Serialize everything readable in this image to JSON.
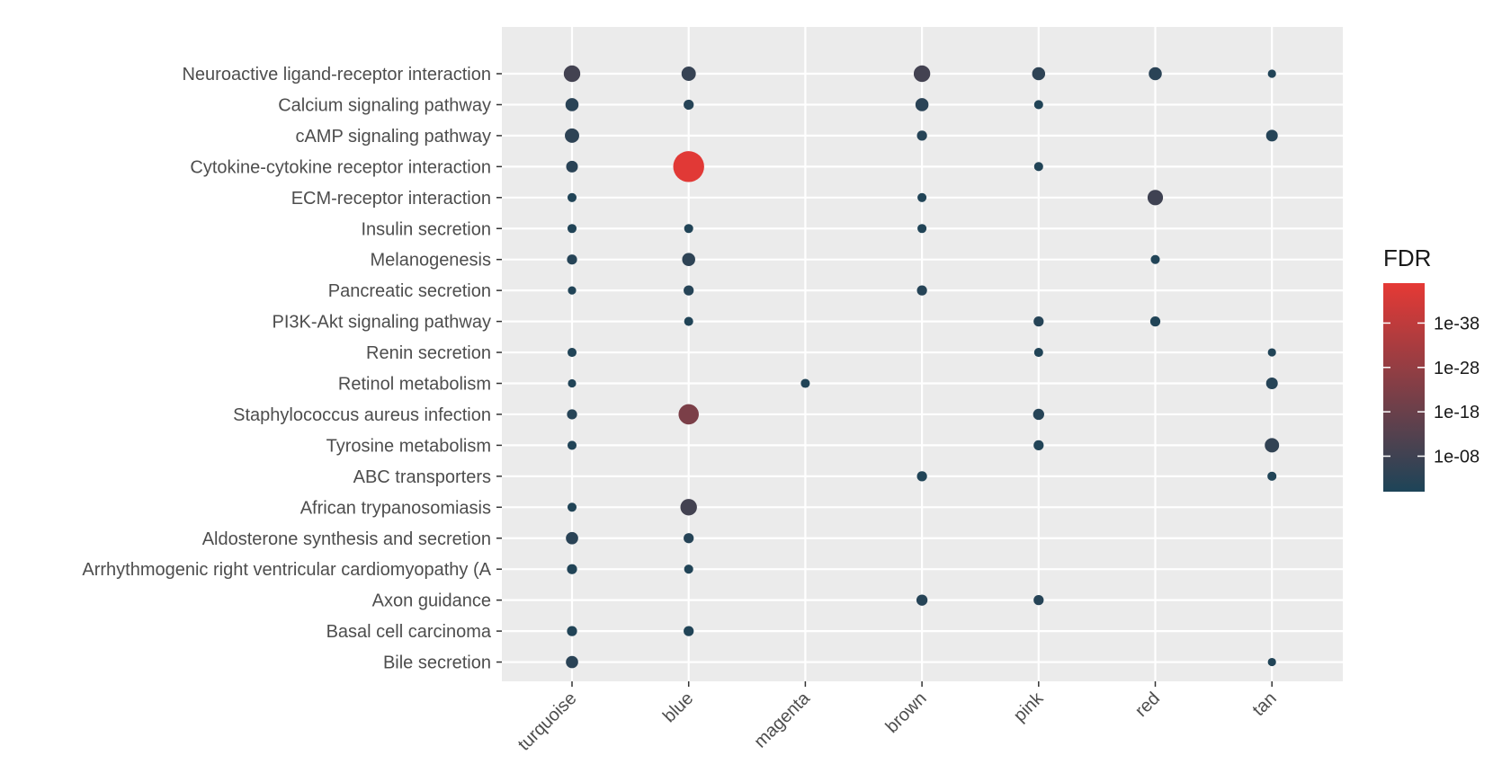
{
  "chart_data": {
    "type": "scatter",
    "title": "",
    "xlabel": "",
    "ylabel": "",
    "x_categories": [
      "turquoise",
      "blue",
      "magenta",
      "brown",
      "pink",
      "red",
      "tan"
    ],
    "y_categories": [
      "Neuroactive ligand-receptor interaction",
      "Calcium signaling pathway",
      "cAMP signaling pathway",
      "Cytokine-cytokine receptor interaction",
      "ECM-receptor interaction",
      "Insulin secretion",
      "Melanogenesis",
      "Pancreatic secretion",
      "PI3K-Akt signaling pathway",
      "Renin secretion",
      "Retinol metabolism",
      "Staphylococcus aureus infection",
      "Tyrosine metabolism",
      "ABC transporters",
      "African trypanosomiasis",
      "Aldosterone synthesis and secretion",
      "Arrhythmogenic right ventricular cardiomyopathy (A",
      "Axon guidance",
      "Basal cell carcinoma",
      "Bile secretion"
    ],
    "points": [
      {
        "x": "turquoise",
        "y": "Neuroactive ligand-receptor interaction",
        "fdr_log10": -9,
        "size": 4
      },
      {
        "x": "blue",
        "y": "Neuroactive ligand-receptor interaction",
        "fdr_log10": -6,
        "size": 3
      },
      {
        "x": "brown",
        "y": "Neuroactive ligand-receptor interaction",
        "fdr_log10": -9,
        "size": 4
      },
      {
        "x": "pink",
        "y": "Neuroactive ligand-receptor interaction",
        "fdr_log10": -4,
        "size": 2.5
      },
      {
        "x": "red",
        "y": "Neuroactive ligand-receptor interaction",
        "fdr_log10": -3,
        "size": 2.5
      },
      {
        "x": "tan",
        "y": "Neuroactive ligand-receptor interaction",
        "fdr_log10": -1,
        "size": 1
      },
      {
        "x": "turquoise",
        "y": "Calcium signaling pathway",
        "fdr_log10": -3,
        "size": 2.5
      },
      {
        "x": "blue",
        "y": "Calcium signaling pathway",
        "fdr_log10": -2,
        "size": 1.5
      },
      {
        "x": "brown",
        "y": "Calcium signaling pathway",
        "fdr_log10": -3,
        "size": 2.5
      },
      {
        "x": "pink",
        "y": "Calcium signaling pathway",
        "fdr_log10": -1,
        "size": 1.2
      },
      {
        "x": "turquoise",
        "y": "cAMP signaling pathway",
        "fdr_log10": -4,
        "size": 3
      },
      {
        "x": "brown",
        "y": "cAMP signaling pathway",
        "fdr_log10": -2,
        "size": 1.5
      },
      {
        "x": "tan",
        "y": "cAMP signaling pathway",
        "fdr_log10": -2,
        "size": 2
      },
      {
        "x": "turquoise",
        "y": "Cytokine-cytokine receptor interaction",
        "fdr_log10": -3,
        "size": 2
      },
      {
        "x": "blue",
        "y": "Cytokine-cytokine receptor interaction",
        "fdr_log10": -46,
        "size": 14
      },
      {
        "x": "pink",
        "y": "Cytokine-cytokine receptor interaction",
        "fdr_log10": -1,
        "size": 1.2
      },
      {
        "x": "turquoise",
        "y": "ECM-receptor interaction",
        "fdr_log10": -1,
        "size": 1.2
      },
      {
        "x": "brown",
        "y": "ECM-receptor interaction",
        "fdr_log10": -1,
        "size": 1.2
      },
      {
        "x": "red",
        "y": "ECM-receptor interaction",
        "fdr_log10": -8,
        "size": 3.5
      },
      {
        "x": "turquoise",
        "y": "Insulin secretion",
        "fdr_log10": -1,
        "size": 1.2
      },
      {
        "x": "blue",
        "y": "Insulin secretion",
        "fdr_log10": -1,
        "size": 1.2
      },
      {
        "x": "brown",
        "y": "Insulin secretion",
        "fdr_log10": -1,
        "size": 1.2
      },
      {
        "x": "turquoise",
        "y": "Melanogenesis",
        "fdr_log10": -2,
        "size": 1.5
      },
      {
        "x": "blue",
        "y": "Melanogenesis",
        "fdr_log10": -4,
        "size": 2.5
      },
      {
        "x": "red",
        "y": "Melanogenesis",
        "fdr_log10": -1,
        "size": 1.2
      },
      {
        "x": "turquoise",
        "y": "Pancreatic secretion",
        "fdr_log10": -1,
        "size": 1
      },
      {
        "x": "blue",
        "y": "Pancreatic secretion",
        "fdr_log10": -2,
        "size": 1.5
      },
      {
        "x": "brown",
        "y": "Pancreatic secretion",
        "fdr_log10": -2,
        "size": 1.5
      },
      {
        "x": "blue",
        "y": "PI3K-Akt signaling pathway",
        "fdr_log10": -1,
        "size": 1.2
      },
      {
        "x": "pink",
        "y": "PI3K-Akt signaling pathway",
        "fdr_log10": -2,
        "size": 1.5
      },
      {
        "x": "red",
        "y": "PI3K-Akt signaling pathway",
        "fdr_log10": -1,
        "size": 1.5
      },
      {
        "x": "turquoise",
        "y": "Renin secretion",
        "fdr_log10": -1,
        "size": 1.2
      },
      {
        "x": "pink",
        "y": "Renin secretion",
        "fdr_log10": -1,
        "size": 1.2
      },
      {
        "x": "tan",
        "y": "Renin secretion",
        "fdr_log10": -1,
        "size": 1
      },
      {
        "x": "turquoise",
        "y": "Retinol metabolism",
        "fdr_log10": -1,
        "size": 1
      },
      {
        "x": "magenta",
        "y": "Retinol metabolism",
        "fdr_log10": -1,
        "size": 1.2
      },
      {
        "x": "tan",
        "y": "Retinol metabolism",
        "fdr_log10": -2,
        "size": 2
      },
      {
        "x": "turquoise",
        "y": "Staphylococcus aureus infection",
        "fdr_log10": -2,
        "size": 1.5
      },
      {
        "x": "blue",
        "y": "Staphylococcus aureus infection",
        "fdr_log10": -22,
        "size": 6
      },
      {
        "x": "pink",
        "y": "Staphylococcus aureus infection",
        "fdr_log10": -2,
        "size": 1.8
      },
      {
        "x": "turquoise",
        "y": "Tyrosine metabolism",
        "fdr_log10": -1,
        "size": 1.2
      },
      {
        "x": "pink",
        "y": "Tyrosine metabolism",
        "fdr_log10": -1,
        "size": 1.5
      },
      {
        "x": "tan",
        "y": "Tyrosine metabolism",
        "fdr_log10": -5,
        "size": 3
      },
      {
        "x": "brown",
        "y": "ABC transporters",
        "fdr_log10": -1,
        "size": 1.5
      },
      {
        "x": "tan",
        "y": "ABC transporters",
        "fdr_log10": -1,
        "size": 1.2
      },
      {
        "x": "turquoise",
        "y": "African trypanosomiasis",
        "fdr_log10": -1,
        "size": 1.2
      },
      {
        "x": "blue",
        "y": "African trypanosomiasis",
        "fdr_log10": -9,
        "size": 4
      },
      {
        "x": "turquoise",
        "y": "Aldosterone synthesis and secretion",
        "fdr_log10": -3,
        "size": 2.2
      },
      {
        "x": "blue",
        "y": "Aldosterone synthesis and secretion",
        "fdr_log10": -2,
        "size": 1.5
      },
      {
        "x": "turquoise",
        "y": "Arrhythmogenic right ventricular cardiomyopathy (A",
        "fdr_log10": -1,
        "size": 1.5
      },
      {
        "x": "blue",
        "y": "Arrhythmogenic right ventricular cardiomyopathy (A",
        "fdr_log10": -1,
        "size": 1.2
      },
      {
        "x": "brown",
        "y": "Axon guidance",
        "fdr_log10": -2,
        "size": 1.8
      },
      {
        "x": "pink",
        "y": "Axon guidance",
        "fdr_log10": -2,
        "size": 1.5
      },
      {
        "x": "turquoise",
        "y": "Basal cell carcinoma",
        "fdr_log10": -1,
        "size": 1.5
      },
      {
        "x": "blue",
        "y": "Basal cell carcinoma",
        "fdr_log10": -1,
        "size": 1.5
      },
      {
        "x": "turquoise",
        "y": "Bile secretion",
        "fdr_log10": -3,
        "size": 2.2
      },
      {
        "x": "tan",
        "y": "Bile secretion",
        "fdr_log10": -1,
        "size": 1
      }
    ],
    "legend": {
      "title": "FDR",
      "placement": "right",
      "ticks": [
        {
          "label": "1e-38",
          "log10": -38
        },
        {
          "label": "1e-28",
          "log10": -28
        },
        {
          "label": "1e-18",
          "log10": -18
        },
        {
          "label": "1e-08",
          "log10": -8
        }
      ],
      "range_log10": [
        -47,
        0
      ],
      "low_color": "#1d4458",
      "high_color": "#e53935"
    },
    "panel_background": "#ebebeb",
    "grid": true
  }
}
